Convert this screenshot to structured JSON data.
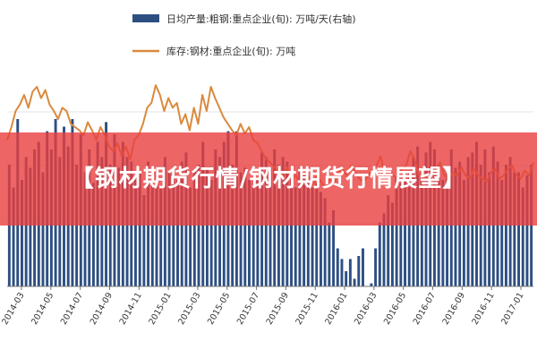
{
  "banner": {
    "title": "【钢材期货行情/钢材期货行情展望】"
  },
  "chart_data": {
    "type": "bar+line",
    "x_ticks": [
      "2014-03",
      "2014-05",
      "2014-07",
      "2014-09",
      "2014-11",
      "2015-01",
      "2015-03",
      "2015-05",
      "2015-07",
      "2015-09",
      "2015-11",
      "2016-01",
      "2016-03",
      "2016-05",
      "2016-07",
      "2016-09",
      "2016-11",
      "2017-01"
    ],
    "series": [
      {
        "name": "日均产量:粗钢:重点企业(旬): 万吨/天(右轴)",
        "kind": "bar",
        "color": "#2d4f82",
        "values": [
          0.4,
          0.25,
          0.7,
          0.3,
          0.45,
          0.38,
          0.5,
          0.55,
          0.35,
          0.62,
          0.5,
          0.7,
          0.45,
          0.65,
          0.52,
          0.7,
          0.4,
          0.6,
          0.35,
          0.5,
          0.28,
          0.55,
          0.45,
          0.68,
          0.4,
          0.6,
          0.38,
          0.55,
          0.45,
          0.42,
          0.3,
          0.35,
          0.2,
          0.42,
          0.32,
          0.38,
          0.25,
          0.45,
          0.35,
          0.35,
          0.3,
          0.42,
          0.48,
          0.25,
          0.35,
          0.4,
          0.55,
          0.38,
          0.3,
          0.5,
          0.45,
          0.55,
          0.62,
          0.4,
          0.62,
          0.35,
          0.38,
          0.3,
          0.25,
          0.3,
          0.48,
          0.45,
          0.38,
          0.5,
          0.4,
          0.45,
          0.42,
          0.3,
          0.25,
          0.38,
          0.34,
          0.32,
          0.25,
          0.28,
          0.22,
          0.18,
          0.02,
          0.1,
          -0.15,
          -0.22,
          -0.3,
          -0.22,
          -0.35,
          -0.2,
          -0.15,
          -0.45,
          -0.38,
          -0.15,
          0.02,
          0.08,
          0.2,
          0.15,
          0.32,
          0.28,
          0.3,
          0.35,
          0.45,
          0.52,
          0.35,
          0.48,
          0.55,
          0.5,
          0.4,
          0.3,
          0.35,
          0.5,
          0.38,
          0.42,
          0.3,
          0.45,
          0.48,
          0.55,
          0.4,
          0.5,
          0.35,
          0.52,
          0.42,
          0.3,
          0.4,
          0.45,
          0.35,
          0.35,
          0.25,
          0.33,
          0.4
        ]
      },
      {
        "name": "库存:钢材:重点企业(旬): 万吨",
        "kind": "line",
        "color": "#d98a3d",
        "values": [
          0.52,
          0.6,
          0.7,
          0.74,
          0.8,
          0.72,
          0.82,
          0.85,
          0.78,
          0.83,
          0.74,
          0.7,
          0.65,
          0.72,
          0.7,
          0.62,
          0.6,
          0.58,
          0.55,
          0.63,
          0.58,
          0.52,
          0.6,
          0.55,
          0.48,
          0.45,
          0.5,
          0.42,
          0.48,
          0.4,
          0.52,
          0.55,
          0.62,
          0.72,
          0.75,
          0.86,
          0.8,
          0.7,
          0.78,
          0.72,
          0.75,
          0.62,
          0.68,
          0.58,
          0.72,
          0.62,
          0.8,
          0.7,
          0.85,
          0.78,
          0.72,
          0.66,
          0.62,
          0.58,
          0.55,
          0.62,
          0.56,
          0.6,
          0.52,
          0.5,
          0.45,
          0.4,
          0.38,
          0.35,
          0.32,
          0.3,
          0.35,
          0.28,
          0.3,
          0.25,
          0.32,
          0.28,
          0.24,
          0.3,
          0.26,
          0.22,
          0.28,
          0.24,
          0.32,
          0.34,
          0.3,
          0.36,
          0.32,
          0.28,
          0.26,
          0.3,
          0.33,
          0.36,
          0.42,
          0.3,
          0.34,
          0.3,
          0.28,
          0.34,
          0.36,
          0.45,
          0.4,
          0.3,
          0.32,
          0.28,
          0.3,
          0.34,
          0.38,
          0.3,
          0.28,
          0.32,
          0.3,
          0.35,
          0.3,
          0.28,
          0.34,
          0.3,
          0.28,
          0.26,
          0.32,
          0.34,
          0.28,
          0.3,
          0.34,
          0.36,
          0.3,
          0.28,
          0.33,
          0.3,
          0.38
        ]
      }
    ]
  }
}
